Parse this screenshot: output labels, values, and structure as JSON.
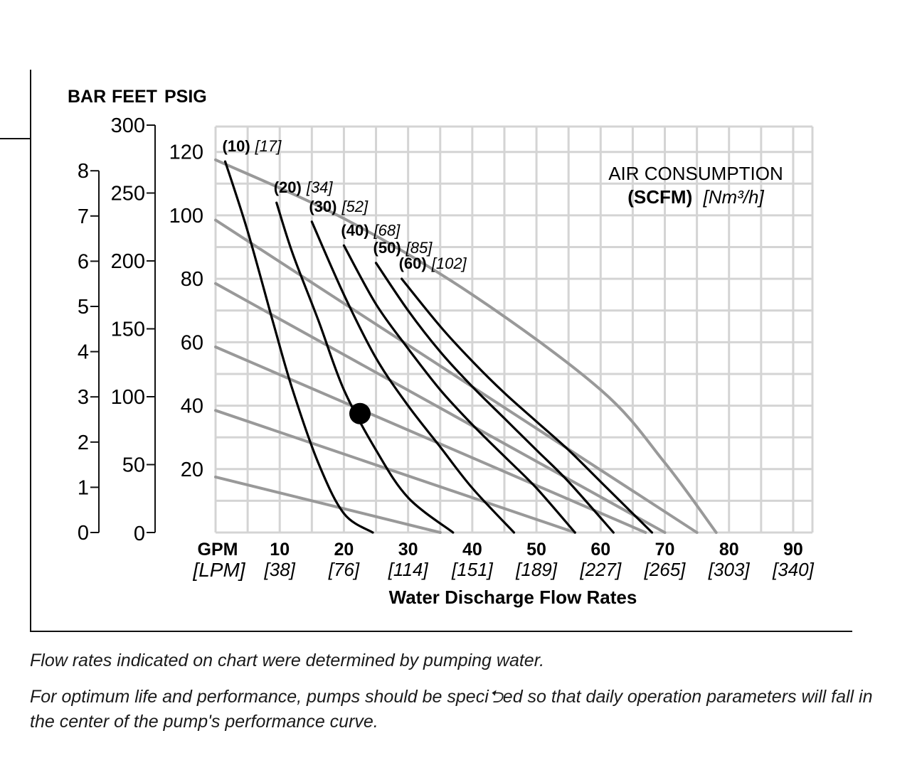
{
  "chart_data": {
    "type": "line",
    "title": "",
    "x_axis": {
      "range": [
        0,
        93
      ],
      "title": "Water Discharge Flow Rates",
      "unit_label": "GPM",
      "alt_unit_label": "[LPM]",
      "ticks": [
        10,
        20,
        30,
        40,
        50,
        60,
        70,
        80,
        90
      ],
      "tick_labels": [
        "10",
        "20",
        "30",
        "40",
        "50",
        "60",
        "70",
        "80",
        "90"
      ],
      "alt_tick_labels": [
        "[38]",
        "[76]",
        "[114]",
        "[151]",
        "[189]",
        "[227]",
        "[265]",
        "[303]",
        "[340]"
      ]
    },
    "y_axis": {
      "range": [
        0,
        128
      ],
      "unit_labels": [
        "BAR",
        "FEET",
        "PSIG"
      ],
      "psig_ticks": [
        0,
        20,
        40,
        60,
        80,
        100,
        120
      ],
      "feet_ticks": [
        0,
        50,
        100,
        150,
        200,
        250,
        300
      ],
      "bar_ticks": [
        0,
        1,
        2,
        3,
        4,
        5,
        6,
        7,
        8
      ]
    },
    "grid": true,
    "air_pressure_curves": [
      {
        "psig": 20,
        "points": [
          [
            0,
            17.5
          ],
          [
            35,
            0
          ]
        ]
      },
      {
        "psig": 40,
        "points": [
          [
            0,
            38.5
          ],
          [
            56,
            0
          ]
        ]
      },
      {
        "psig": 60,
        "points": [
          [
            0,
            58.5
          ],
          [
            67,
            0
          ]
        ]
      },
      {
        "psig": 80,
        "points": [
          [
            0,
            78.5
          ],
          [
            70,
            0
          ]
        ]
      },
      {
        "psig": 100,
        "points": [
          [
            0,
            98.5
          ],
          [
            75,
            0
          ]
        ]
      },
      {
        "psig": 120,
        "points": [
          [
            0,
            117.5
          ],
          [
            20,
            99
          ],
          [
            40,
            75
          ],
          [
            60,
            45
          ],
          [
            70,
            22
          ],
          [
            78,
            0
          ]
        ]
      }
    ],
    "air_consumption_title": "AIR CONSUMPTION",
    "air_consumption_units": "(SCFM)",
    "air_consumption_alt_units": "[Nm³/h]",
    "air_consumption_curves": [
      {
        "scfm": "(10)",
        "nm3h": "[17]",
        "points": [
          [
            1.5,
            117
          ],
          [
            5,
            95
          ],
          [
            9,
            66
          ],
          [
            12,
            45
          ],
          [
            16,
            22
          ],
          [
            20,
            6
          ],
          [
            24.5,
            0
          ]
        ]
      },
      {
        "scfm": "(20)",
        "nm3h": "[34]",
        "points": [
          [
            9.5,
            104
          ],
          [
            12,
            88
          ],
          [
            16,
            67
          ],
          [
            20,
            45
          ],
          [
            25,
            26
          ],
          [
            30,
            11
          ],
          [
            37,
            0
          ]
        ]
      },
      {
        "scfm": "(30)",
        "nm3h": "[52]",
        "points": [
          [
            15,
            98
          ],
          [
            20,
            75
          ],
          [
            25,
            55
          ],
          [
            30,
            40
          ],
          [
            35,
            27
          ],
          [
            40,
            14
          ],
          [
            46.5,
            0
          ]
        ]
      },
      {
        "scfm": "(40)",
        "nm3h": "[68]",
        "points": [
          [
            20,
            90.5
          ],
          [
            25,
            72
          ],
          [
            30,
            58
          ],
          [
            35,
            45
          ],
          [
            40,
            34
          ],
          [
            45,
            24
          ],
          [
            50,
            14
          ],
          [
            56,
            0
          ]
        ]
      },
      {
        "scfm": "(50)",
        "nm3h": "[85]",
        "points": [
          [
            25,
            85
          ],
          [
            30,
            70
          ],
          [
            35,
            57
          ],
          [
            40,
            46
          ],
          [
            45,
            36
          ],
          [
            50,
            26
          ],
          [
            55,
            16
          ],
          [
            62,
            0
          ]
        ]
      },
      {
        "scfm": "(60)",
        "nm3h": "[102]",
        "points": [
          [
            29,
            80
          ],
          [
            35,
            65
          ],
          [
            40,
            54
          ],
          [
            45,
            44
          ],
          [
            50,
            35
          ],
          [
            55,
            26
          ],
          [
            60,
            16
          ],
          [
            68,
            0
          ]
        ]
      }
    ],
    "operating_point": [
      22.5,
      37.5
    ],
    "colors": {
      "grid": "#d4d4d4",
      "air_pressure_curve": "#999999",
      "air_consumption_curve": "#000000",
      "axis": "#111111"
    }
  },
  "notes": [
    "Flow rates indicated on chart were determined by pumping water.",
    "For optimum life and performance, pumps should be speci⮌ed so that daily operation parameters will fall in the center of the pump's performance curve."
  ]
}
